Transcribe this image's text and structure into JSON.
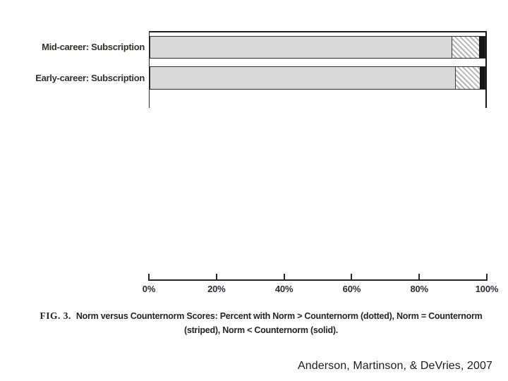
{
  "slide": {
    "background": "#ffffff",
    "attribution": "Anderson, Martinson, & DeVries, 2007"
  },
  "figure": {
    "caption": {
      "tag": "FIG. 3.",
      "line1": "Norm versus Counternorm Scores: Percent with Norm > Counternorm (dotted), Norm = Counternorm",
      "line2": "(striped), Norm < Counternorm (solid)."
    }
  },
  "chart_data": {
    "type": "bar",
    "orientation": "horizontal",
    "stacked": true,
    "units": "percent",
    "title": "",
    "xlabel": "",
    "ylabel": "",
    "xlim": [
      0,
      100
    ],
    "grid": false,
    "legend_position": "encoded-in-caption",
    "categories": [
      "Mid-career: Subscription",
      "Early-career: Subscription"
    ],
    "series": [
      {
        "name": "Norm > Counternorm (dotted)",
        "style": "dotted",
        "values": [
          90.2,
          91.3
        ]
      },
      {
        "name": "Norm = Counternorm (striped)",
        "style": "striped",
        "values": [
          8.1,
          7.2
        ]
      },
      {
        "name": "Norm < Counternorm (solid)",
        "style": "solid",
        "values": [
          1.7,
          1.5
        ]
      }
    ],
    "x_ticks": [
      "0%",
      "20%",
      "40%",
      "60%",
      "80%",
      "100%"
    ]
  },
  "colors": {
    "bar_fill_dotted": "#d9d9d9",
    "bar_stripe": "#b5b5b5",
    "bar_solid": "#171717",
    "axis_line": "#26262b",
    "text": "#2a2a30"
  }
}
